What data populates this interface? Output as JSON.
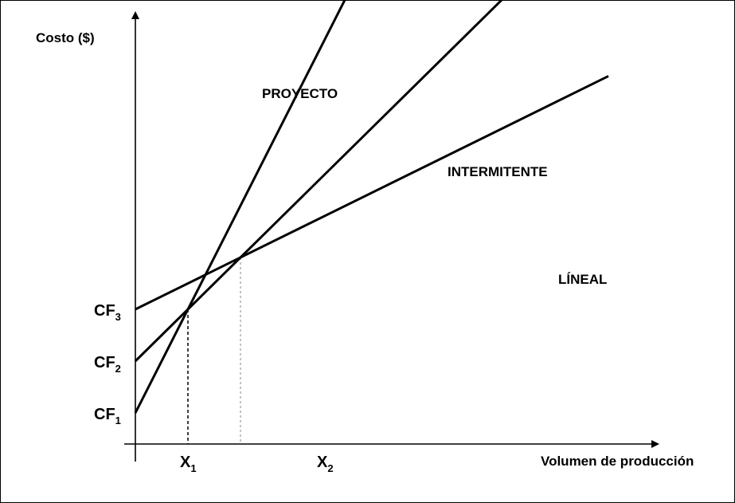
{
  "chart_data": {
    "type": "line",
    "ylabel": "Costo ($)",
    "xlabel": "Volumen de producción",
    "colors": {
      "line": "#000000",
      "axis": "#000000",
      "guide": "#888888"
    },
    "y_ticks": [
      {
        "main": "CF",
        "sub": "3",
        "value": 3
      },
      {
        "main": "CF",
        "sub": "2",
        "value": 2
      },
      {
        "main": "CF",
        "sub": "1",
        "value": 1
      }
    ],
    "x_ticks": [
      {
        "main": "X",
        "sub": "1",
        "value": 1
      },
      {
        "main": "X",
        "sub": "2",
        "value": 2
      }
    ],
    "series": [
      {
        "name": "PROYECTO",
        "intercept": 1,
        "slope": 2
      },
      {
        "name": "INTERMITENTE",
        "intercept": 2,
        "slope": 1
      },
      {
        "name": "LÍNEAL",
        "intercept": 3,
        "slope": 0.5
      }
    ],
    "grid": false,
    "legend": "inline labels"
  }
}
